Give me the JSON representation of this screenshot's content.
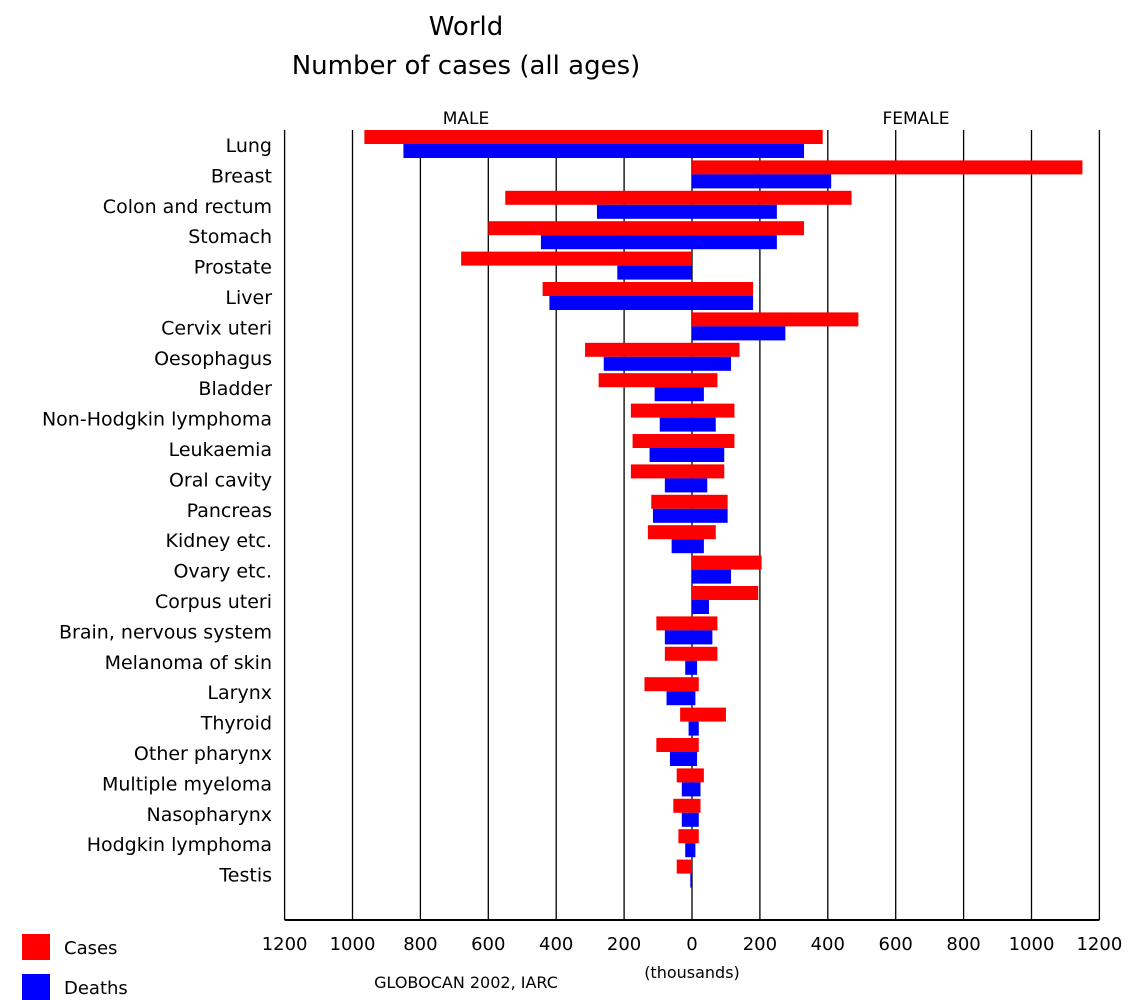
{
  "chart_data": {
    "type": "bar",
    "title": "World",
    "subtitle": "Number of cases (all ages)",
    "side_labels": {
      "left": "MALE",
      "right": "FEMALE"
    },
    "xlabel": "(thousands)",
    "source_note": "GLOBOCAN 2002, IARC",
    "xlim": [
      -1200,
      1200
    ],
    "x_ticks": [
      -1200,
      -1000,
      -800,
      -600,
      -400,
      -200,
      0,
      200,
      400,
      600,
      800,
      1000,
      1200
    ],
    "x_tick_labels": [
      "1200",
      "1000",
      "800",
      "600",
      "400",
      "200",
      "0",
      "200",
      "400",
      "600",
      "800",
      "1000",
      "1200"
    ],
    "grid": true,
    "legend_position": "bottom-left",
    "colors": {
      "cases": "#ff0000",
      "deaths": "#0000ff"
    },
    "categories": [
      "Lung",
      "Breast",
      "Colon and rectum",
      "Stomach",
      "Prostate",
      "Liver",
      "Cervix uteri",
      "Oesophagus",
      "Bladder",
      "Non-Hodgkin lymphoma",
      "Leukaemia",
      "Oral cavity",
      "Pancreas",
      "Kidney etc.",
      "Ovary etc.",
      "Corpus uteri",
      "Brain, nervous system",
      "Melanoma of skin",
      "Larynx",
      "Thyroid",
      "Other pharynx",
      "Multiple myeloma",
      "Nasopharynx",
      "Hodgkin lymphoma",
      "Testis"
    ],
    "series": [
      {
        "name": "Cases",
        "sex": "male",
        "values": [
          965,
          0,
          550,
          600,
          680,
          440,
          0,
          315,
          275,
          180,
          175,
          180,
          120,
          130,
          0,
          0,
          105,
          80,
          140,
          35,
          105,
          45,
          55,
          40,
          45
        ]
      },
      {
        "name": "Deaths",
        "sex": "male",
        "values": [
          850,
          0,
          280,
          445,
          220,
          420,
          0,
          260,
          110,
          95,
          125,
          80,
          115,
          60,
          0,
          0,
          80,
          20,
          75,
          10,
          65,
          30,
          30,
          20,
          5
        ]
      },
      {
        "name": "Cases",
        "sex": "female",
        "values": [
          385,
          1150,
          470,
          330,
          0,
          180,
          490,
          140,
          75,
          125,
          125,
          95,
          105,
          70,
          205,
          195,
          75,
          75,
          20,
          100,
          20,
          35,
          25,
          20,
          0
        ]
      },
      {
        "name": "Deaths",
        "sex": "female",
        "values": [
          330,
          410,
          250,
          250,
          0,
          180,
          275,
          115,
          35,
          70,
          95,
          45,
          105,
          35,
          115,
          50,
          60,
          15,
          10,
          20,
          15,
          25,
          20,
          10,
          0
        ]
      }
    ]
  }
}
